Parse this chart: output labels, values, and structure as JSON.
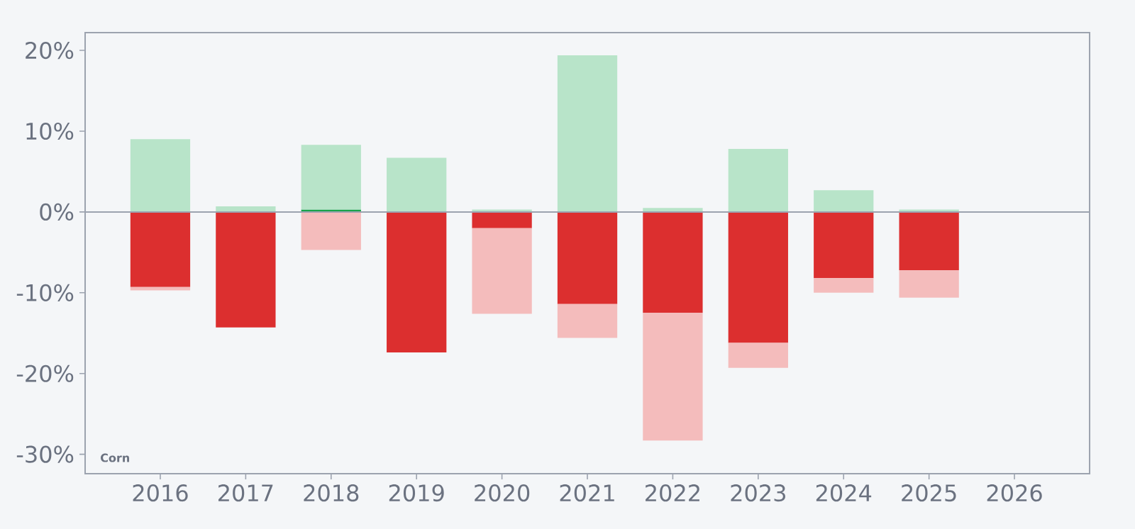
{
  "chart_data": {
    "type": "bar",
    "categories": [
      "2016",
      "2017",
      "2018",
      "2019",
      "2020",
      "2021",
      "2022",
      "2023",
      "2024",
      "2025",
      "2026"
    ],
    "stacked": true,
    "series": [
      {
        "colors": [
          "#dc2f2f",
          "#dc2f2f",
          "#16a34a",
          "#dc2f2f",
          "#dc2f2f",
          "#dc2f2f",
          "#dc2f2f",
          "#dc2f2f",
          "#dc2f2f",
          "#dc2f2f",
          "#dc2f2f"
        ],
        "values": [
          -9.3,
          -14.3,
          0.3,
          -17.4,
          -2.0,
          -11.4,
          -12.5,
          -16.2,
          -8.2,
          -7.2,
          null
        ]
      },
      {
        "color": "#b8e4c9",
        "values": [
          9.0,
          0.7,
          8.0,
          6.7,
          0.3,
          19.4,
          0.5,
          7.8,
          2.7,
          0.3,
          null
        ]
      },
      {
        "color": "#f4bcbc",
        "values": [
          -0.4,
          null,
          -4.7,
          null,
          -10.6,
          -4.2,
          -15.8,
          -3.1,
          -1.8,
          -3.4,
          null
        ]
      }
    ],
    "ylim": [
      -32.4,
      22.2
    ],
    "yticks": [
      {
        "value": -30,
        "label": "-30%"
      },
      {
        "value": -20,
        "label": "-20%"
      },
      {
        "value": -10,
        "label": "-10%"
      },
      {
        "value": 0,
        "label": "0%"
      },
      {
        "value": 10,
        "label": "10%"
      },
      {
        "value": 20,
        "label": "20%"
      }
    ],
    "ref_lines": [
      {
        "axis": "y",
        "value": 0,
        "color": "#9ca3af"
      }
    ],
    "annotations": [
      "Corn"
    ],
    "grid": false
  }
}
